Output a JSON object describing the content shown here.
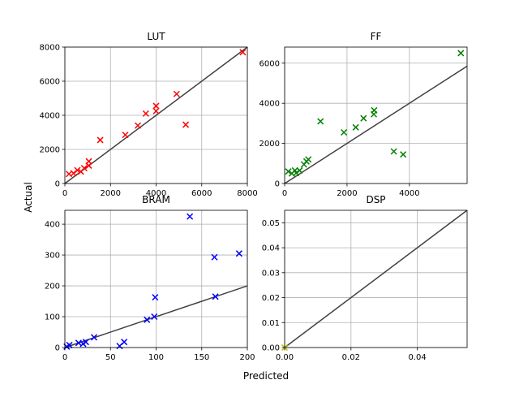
{
  "figure": {
    "xlabel": "Predicted",
    "ylabel": "Actual"
  },
  "chart_data": [
    {
      "type": "scatter",
      "title": "LUT",
      "color": "#ff0000",
      "marker": "x",
      "xlim": [
        0,
        8000
      ],
      "ylim": [
        0,
        8000
      ],
      "xticks": [
        0,
        2000,
        4000,
        6000,
        8000
      ],
      "yticks": [
        0,
        2000,
        4000,
        6000,
        8000
      ],
      "grid": true,
      "reference_line": [
        [
          0,
          0
        ],
        [
          8000,
          8000
        ]
      ],
      "x": [
        180,
        380,
        550,
        700,
        850,
        1050,
        1050,
        1550,
        2650,
        3200,
        3550,
        4000,
        4000,
        4900,
        5300,
        7800
      ],
      "y": [
        560,
        600,
        780,
        700,
        900,
        1050,
        1300,
        2550,
        2850,
        3400,
        4100,
        4250,
        4550,
        5250,
        3450,
        7700
      ]
    },
    {
      "type": "scatter",
      "title": "FF",
      "color": "#008000",
      "marker": "x",
      "xlim": [
        0,
        5850
      ],
      "ylim": [
        0,
        6800
      ],
      "xticks": [
        0,
        2000,
        4000
      ],
      "yticks": [
        0,
        2000,
        4000,
        6000
      ],
      "grid": true,
      "reference_line": [
        [
          0,
          0
        ],
        [
          5850,
          5850
        ]
      ],
      "x": [
        120,
        230,
        330,
        370,
        480,
        620,
        700,
        760,
        1150,
        1900,
        2280,
        2530,
        2860,
        2870,
        3500,
        3800,
        5650
      ],
      "y": [
        600,
        500,
        650,
        520,
        650,
        950,
        1100,
        1200,
        3100,
        2550,
        2800,
        3250,
        3450,
        3650,
        1600,
        1450,
        6500
      ]
    },
    {
      "type": "scatter",
      "title": "BRAM",
      "color": "#0000ff",
      "marker": "x",
      "xlim": [
        0,
        200
      ],
      "ylim": [
        0,
        445
      ],
      "xticks": [
        0,
        50,
        100,
        150,
        200
      ],
      "yticks": [
        0,
        100,
        200,
        300,
        400
      ],
      "grid": true,
      "reference_line": [
        [
          0,
          0
        ],
        [
          200,
          200
        ]
      ],
      "x": [
        2,
        5,
        15,
        20,
        23,
        32,
        60,
        65,
        90,
        98,
        99,
        137,
        164,
        165,
        191
      ],
      "y": [
        3,
        8,
        15,
        12,
        18,
        33,
        5,
        18,
        90,
        100,
        163,
        425,
        293,
        165,
        305
      ]
    },
    {
      "type": "scatter",
      "title": "DSP",
      "color": "#bfbf00",
      "marker": "x",
      "xlim": [
        0,
        0.055
      ],
      "ylim": [
        0,
        0.055
      ],
      "xticks": [
        0.0,
        0.02,
        0.04
      ],
      "yticks": [
        0.0,
        0.01,
        0.02,
        0.03,
        0.04,
        0.05
      ],
      "xtick_labels": [
        "0.00",
        "0.02",
        "0.04"
      ],
      "ytick_labels": [
        "0.00",
        "0.01",
        "0.02",
        "0.03",
        "0.04",
        "0.05"
      ],
      "grid": true,
      "reference_line": [
        [
          0,
          0
        ],
        [
          0.055,
          0.055
        ]
      ],
      "x": [
        0
      ],
      "y": [
        0
      ]
    }
  ]
}
